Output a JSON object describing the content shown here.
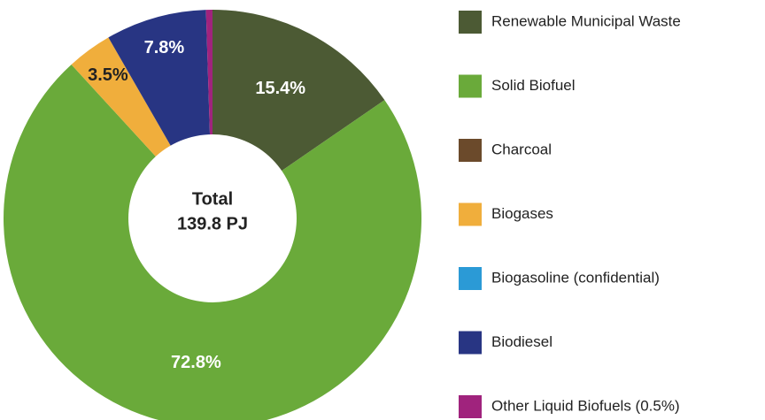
{
  "chart_data": {
    "type": "donut",
    "center_label": [
      "Total",
      "139.8 PJ"
    ],
    "categories": [
      "Renewable Municipal Waste",
      "Solid Biofuel",
      "Charcoal",
      "Biogases",
      "Biogasoline (confidential)",
      "Biodiesel",
      "Other Liquid Biofuels (0.5%)"
    ],
    "values": [
      15.4,
      72.8,
      0,
      3.5,
      0,
      7.8,
      0.5
    ],
    "value_labels": [
      "15.4%",
      "72.8%",
      null,
      "3.5%",
      null,
      "7.8%",
      null
    ],
    "colors": [
      "#4c5a34",
      "#6aaa3a",
      "#6b4a2b",
      "#f0ae3c",
      "#2b9ad6",
      "#283583",
      "#a0237d"
    ],
    "legend": "right"
  }
}
